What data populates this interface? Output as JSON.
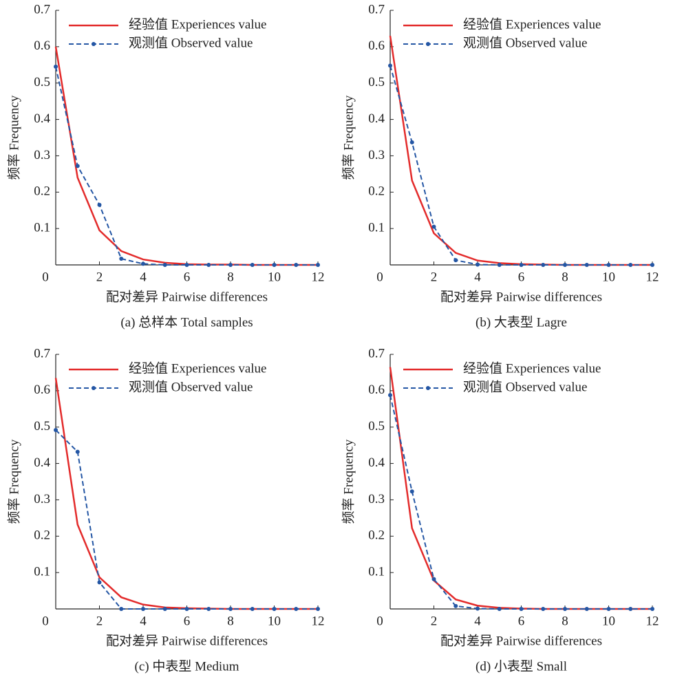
{
  "chart_data": [
    {
      "type": "line",
      "title": "(a) 总样本 Total samples",
      "x_label": "配对差异 Pairwise differences",
      "y_label": "频率 Frequency",
      "x": [
        0,
        1,
        2,
        3,
        4,
        5,
        6,
        7,
        8,
        9,
        10,
        11,
        12
      ],
      "xlim": [
        0,
        12
      ],
      "xticks": [
        0,
        2,
        4,
        6,
        8,
        10,
        12
      ],
      "ylim": [
        0,
        0.7
      ],
      "yticks": [
        0.1,
        0.2,
        0.3,
        0.4,
        0.5,
        0.6,
        0.7
      ],
      "series": [
        {
          "name": "经验值 Experiences value",
          "color": "#e32b2b",
          "values": [
            0.6,
            0.24,
            0.095,
            0.038,
            0.015,
            0.006,
            0.002,
            0.001,
            0.001,
            0,
            0,
            0,
            0
          ]
        },
        {
          "name": "观测值 Observed value",
          "color": "#2456a4",
          "values": [
            0.545,
            0.272,
            0.165,
            0.017,
            0.003,
            0,
            0,
            0,
            0,
            0,
            0,
            0,
            0
          ]
        }
      ]
    },
    {
      "type": "line",
      "title": "(b) 大表型 Lagre",
      "x_label": "配对差异 Pairwise differences",
      "y_label": "频率 Frequency",
      "x": [
        0,
        1,
        2,
        3,
        4,
        5,
        6,
        7,
        8,
        9,
        10,
        11,
        12
      ],
      "xlim": [
        0,
        12
      ],
      "xticks": [
        0,
        2,
        4,
        6,
        8,
        10,
        12
      ],
      "ylim": [
        0,
        0.7
      ],
      "yticks": [
        0.1,
        0.2,
        0.3,
        0.4,
        0.5,
        0.6,
        0.7
      ],
      "series": [
        {
          "name": "经验值 Experiences value",
          "color": "#e32b2b",
          "values": [
            0.63,
            0.232,
            0.087,
            0.033,
            0.012,
            0.005,
            0.002,
            0.001,
            0,
            0,
            0,
            0,
            0
          ]
        },
        {
          "name": "观测值 Observed value",
          "color": "#2456a4",
          "values": [
            0.548,
            0.337,
            0.105,
            0.013,
            0.001,
            0,
            0,
            0,
            0,
            0,
            0,
            0,
            0
          ]
        }
      ]
    },
    {
      "type": "line",
      "title": "(c) 中表型 Medium",
      "x_label": "配对差异 Pairwise differences",
      "y_label": "频率 Frequency",
      "x": [
        0,
        1,
        2,
        3,
        4,
        5,
        6,
        7,
        8,
        9,
        10,
        11,
        12
      ],
      "xlim": [
        0,
        12
      ],
      "xticks": [
        0,
        2,
        4,
        6,
        8,
        10,
        12
      ],
      "ylim": [
        0,
        0.7
      ],
      "yticks": [
        0.1,
        0.2,
        0.3,
        0.4,
        0.5,
        0.6,
        0.7
      ],
      "series": [
        {
          "name": "经验值 Experiences value",
          "color": "#e32b2b",
          "values": [
            0.635,
            0.232,
            0.087,
            0.032,
            0.012,
            0.004,
            0.002,
            0.001,
            0,
            0,
            0,
            0,
            0
          ]
        },
        {
          "name": "观测值 Observed value",
          "color": "#2456a4",
          "values": [
            0.492,
            0.432,
            0.073,
            0,
            0,
            0,
            0,
            0,
            0,
            0,
            0,
            0,
            0
          ]
        }
      ]
    },
    {
      "type": "line",
      "title": "(d) 小表型 Small",
      "x_label": "配对差异 Pairwise differences",
      "y_label": "频率 Frequency",
      "x": [
        0,
        1,
        2,
        3,
        4,
        5,
        6,
        7,
        8,
        9,
        10,
        11,
        12
      ],
      "xlim": [
        0,
        12
      ],
      "xticks": [
        0,
        2,
        4,
        6,
        8,
        10,
        12
      ],
      "ylim": [
        0,
        0.7
      ],
      "yticks": [
        0.1,
        0.2,
        0.3,
        0.4,
        0.5,
        0.6,
        0.7
      ],
      "series": [
        {
          "name": "经验值 Experiences value",
          "color": "#e32b2b",
          "values": [
            0.665,
            0.222,
            0.078,
            0.026,
            0.009,
            0.003,
            0.001,
            0,
            0,
            0,
            0,
            0,
            0
          ]
        },
        {
          "name": "观测值 Observed value",
          "color": "#2456a4",
          "values": [
            0.588,
            0.323,
            0.082,
            0.008,
            0.001,
            0,
            0,
            0,
            0,
            0,
            0,
            0,
            0
          ]
        }
      ]
    }
  ]
}
